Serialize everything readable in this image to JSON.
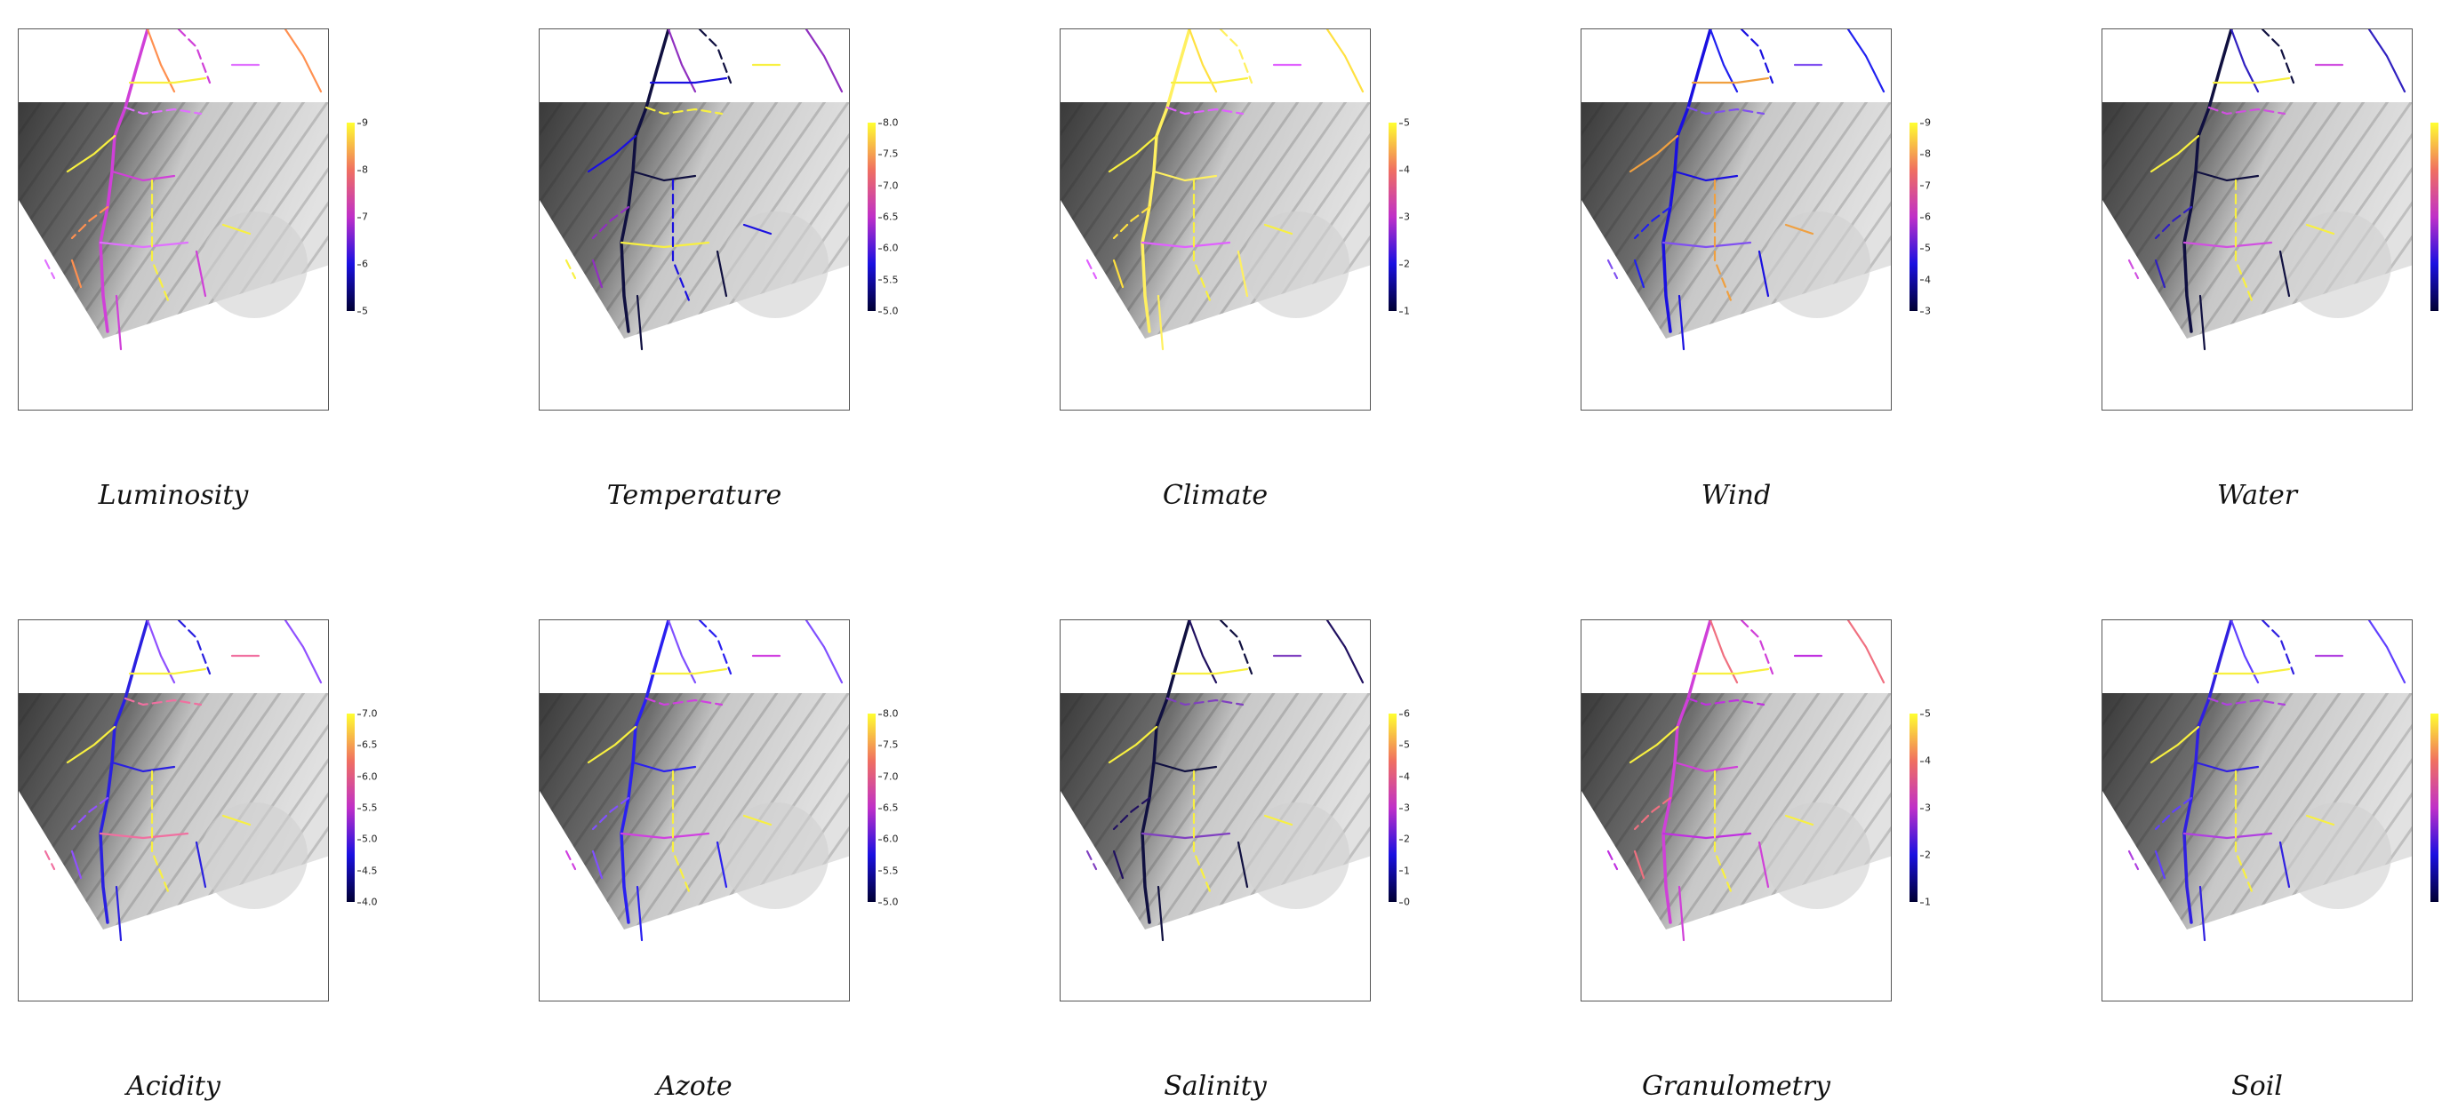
{
  "panels": [
    {
      "caption": "Luminosity",
      "ticks": [
        "9",
        "8",
        "7",
        "6",
        "5"
      ],
      "palette": "p1"
    },
    {
      "caption": "Temperature",
      "ticks": [
        "8.0",
        "7.5",
        "7.0",
        "6.5",
        "6.0",
        "5.5",
        "5.0"
      ],
      "palette": "p2"
    },
    {
      "caption": "Climate",
      "ticks": [
        "5",
        "4",
        "3",
        "2",
        "1"
      ],
      "palette": "p3"
    },
    {
      "caption": "Wind",
      "ticks": [
        "9",
        "8",
        "7",
        "6",
        "5",
        "4",
        "3"
      ],
      "palette": "p4"
    },
    {
      "caption": "Water",
      "ticks": [],
      "palette": "p5"
    },
    {
      "caption": "Acidity",
      "ticks": [
        "7.0",
        "6.5",
        "6.0",
        "5.5",
        "5.0",
        "4.5",
        "4.0"
      ],
      "palette": "p6"
    },
    {
      "caption": "Azote",
      "ticks": [
        "8.0",
        "7.5",
        "7.0",
        "6.5",
        "6.0",
        "5.5",
        "5.0"
      ],
      "palette": "p7"
    },
    {
      "caption": "Salinity",
      "ticks": [
        "6",
        "5",
        "4",
        "3",
        "2",
        "1",
        "0"
      ],
      "palette": "p8"
    },
    {
      "caption": "Granulometry",
      "ticks": [
        "5",
        "4",
        "3",
        "2",
        "1"
      ],
      "palette": "p9"
    },
    {
      "caption": "Soil",
      "ticks": [],
      "palette": "p10"
    }
  ],
  "colorscale": {
    "low": "#000033",
    "mid_low": "#1a10e0",
    "mid": "#c030c8",
    "mid_high": "#f07060",
    "high": "#ffff30"
  },
  "stream_colors": {
    "p1": [
      "#d040d8",
      "#ff9050",
      "#e070ff",
      "#f8f040"
    ],
    "p2": [
      "#101040",
      "#9030c0",
      "#f8f040",
      "#1a10e0"
    ],
    "p3": [
      "#fff060",
      "#ffe040",
      "#e060ff",
      "#f8f040"
    ],
    "p4": [
      "#1a10e0",
      "#2020f0",
      "#8050f0",
      "#f0a040"
    ],
    "p5": [
      "#101040",
      "#3020c0",
      "#d050e0",
      "#f8f040"
    ],
    "p6": [
      "#2a20e0",
      "#9050ff",
      "#f070a0",
      "#f8f040"
    ],
    "p7": [
      "#2a20f0",
      "#8050ff",
      "#d040e0",
      "#f8f040"
    ],
    "p8": [
      "#101040",
      "#201060",
      "#8040c0",
      "#f8f040"
    ],
    "p9": [
      "#d040d8",
      "#f07080",
      "#c030e0",
      "#f8f040"
    ],
    "p10": [
      "#3020e0",
      "#6040ff",
      "#b040e0",
      "#f8f040"
    ]
  }
}
